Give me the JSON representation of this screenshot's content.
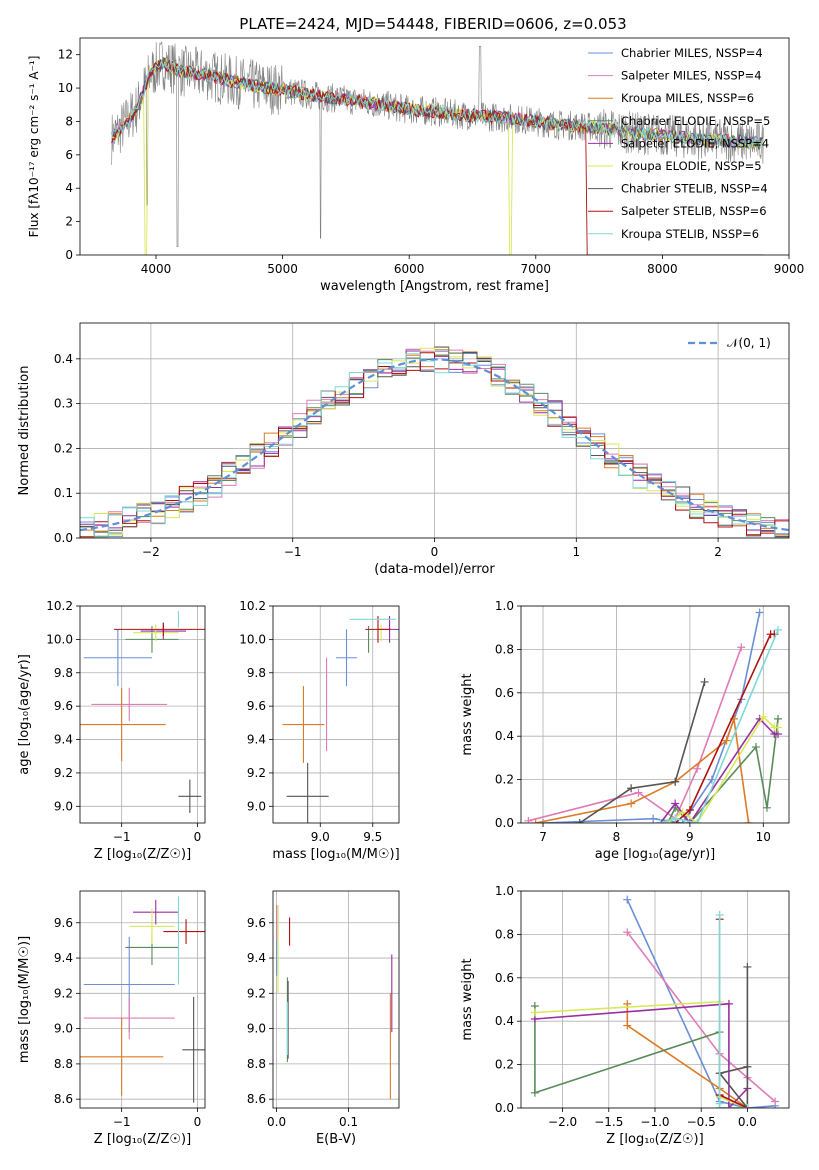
{
  "title": "PLATE=2424, MJD=54448, FIBERID=0606, z=0.053",
  "colors": {
    "c0": "#6a8fd8",
    "c1": "#e07bb5",
    "c2": "#dd7a25",
    "c3": "#5a8a5a",
    "c4": "#9a2fa0",
    "c5": "#d8e85a",
    "c6": "#555555",
    "c7": "#b01010",
    "c8": "#7fd8d8",
    "data": "#808080",
    "normal": "#5f8fd8"
  },
  "chart_data": [
    {
      "id": "spectrum",
      "type": "line",
      "xlabel": "wavelength [Angstrom, rest frame]",
      "ylabel": "Flux [fλ10⁻¹⁷ erg cm⁻² s⁻¹ A⁻¹]",
      "xlim": [
        3400,
        9000
      ],
      "ylim": [
        0,
        13
      ],
      "xticks": [
        4000,
        5000,
        6000,
        7000,
        8000,
        9000
      ],
      "yticks": [
        0,
        2,
        4,
        6,
        8,
        10,
        12
      ],
      "grid": false,
      "legend_position": "top-right",
      "legend": [
        "Chabrier MILES, NSSP=4",
        "Salpeter MILES, NSSP=4",
        "Kroupa MILES, NSSP=6",
        "Chabrier ELODIE, NSSP=5",
        "Salpeter ELODIE, NSSP=4",
        "Kroupa ELODIE, NSSP=5",
        "Chabrier STELIB, NSSP=4",
        "Salpeter STELIB, NSSP=6",
        "Kroupa STELIB, NSSP=6"
      ],
      "continuum": [
        [
          3650,
          7.0
        ],
        [
          3750,
          7.8
        ],
        [
          3850,
          8.8
        ],
        [
          3950,
          10.8
        ],
        [
          4050,
          11.5
        ],
        [
          4200,
          11.0
        ],
        [
          4400,
          10.8
        ],
        [
          4600,
          10.4
        ],
        [
          4800,
          10.1
        ],
        [
          5000,
          9.9
        ],
        [
          5200,
          9.6
        ],
        [
          5400,
          9.4
        ],
        [
          5600,
          9.2
        ],
        [
          5800,
          9.0
        ],
        [
          6000,
          8.7
        ],
        [
          6200,
          8.6
        ],
        [
          6400,
          8.4
        ],
        [
          6600,
          8.3
        ],
        [
          6800,
          8.2
        ],
        [
          7000,
          8.0
        ],
        [
          7200,
          7.8
        ],
        [
          7400,
          7.7
        ],
        [
          7600,
          7.5
        ],
        [
          7800,
          7.3
        ],
        [
          8000,
          7.2
        ],
        [
          8200,
          7.0
        ],
        [
          8400,
          6.9
        ],
        [
          8600,
          6.8
        ],
        [
          8800,
          6.7
        ]
      ]
    },
    {
      "id": "residuals",
      "type": "histogram",
      "xlabel": "(data-model)/error",
      "ylabel": "Normed distribution",
      "xlim": [
        -2.5,
        2.5
      ],
      "ylim": [
        0,
        0.48
      ],
      "xticks": [
        -2,
        -1,
        0,
        1,
        2
      ],
      "yticks": [
        0.0,
        0.1,
        0.2,
        0.3,
        0.4
      ],
      "grid": true,
      "legend_position": "top-right",
      "legend": [
        "𝒩(0, 1)"
      ]
    },
    {
      "id": "age_vs_Z",
      "type": "errorbar",
      "xlabel": "Z [log₁₀(Z/Z☉)]",
      "ylabel": "age  [log₁₀(age/yr)]",
      "xlim": [
        -1.55,
        0.1
      ],
      "ylim": [
        8.9,
        10.2
      ],
      "xticks": [
        -1,
        0
      ],
      "yticks": [
        9.0,
        9.2,
        9.4,
        9.6,
        9.8,
        10.0,
        10.2
      ],
      "grid": true,
      "points": [
        {
          "c": "c0",
          "x": -1.05,
          "xe": 0.45,
          "y": 9.89,
          "ye": 0.17
        },
        {
          "c": "c1",
          "x": -0.9,
          "xe": 0.5,
          "y": 9.61,
          "ye": 0.1
        },
        {
          "c": "c2",
          "x": -1.0,
          "xe": 0.58,
          "y": 9.49,
          "ye": 0.22
        },
        {
          "c": "c3",
          "x": -0.6,
          "xe": 0.35,
          "y": 10.0,
          "ye": 0.08
        },
        {
          "c": "c4",
          "x": -0.45,
          "xe": 0.3,
          "y": 10.05,
          "ye": 0.05
        },
        {
          "c": "c5",
          "x": -0.55,
          "xe": 0.3,
          "y": 10.04,
          "ye": 0.05
        },
        {
          "c": "c6",
          "x": -0.1,
          "xe": 0.15,
          "y": 9.06,
          "ye": 0.1
        },
        {
          "c": "c7",
          "x": -0.45,
          "xe": 0.65,
          "y": 10.06,
          "ye": 0.04
        },
        {
          "c": "c8",
          "x": -0.25,
          "xe": 0.0,
          "y": 10.12,
          "ye": 0.05
        }
      ]
    },
    {
      "id": "age_vs_mass",
      "type": "errorbar",
      "xlabel": "mass [log₁₀(M/M☉)]",
      "ylabel": "",
      "xlim": [
        8.55,
        9.75
      ],
      "ylim": [
        8.9,
        10.2
      ],
      "xticks": [
        9.0,
        9.5
      ],
      "yticks": [
        9.0,
        9.2,
        9.4,
        9.6,
        9.8,
        10.0,
        10.2
      ],
      "grid": true,
      "points": [
        {
          "c": "c0",
          "x": 9.25,
          "xe": 0.1,
          "y": 9.89,
          "ye": 0.17
        },
        {
          "c": "c1",
          "x": 9.06,
          "xe": 0.0,
          "y": 9.61,
          "ye": 0.28
        },
        {
          "c": "c2",
          "x": 8.84,
          "xe": 0.2,
          "y": 9.49,
          "ye": 0.23
        },
        {
          "c": "c3",
          "x": 9.46,
          "xe": 0.0,
          "y": 10.0,
          "ye": 0.08
        },
        {
          "c": "c4",
          "x": 9.66,
          "xe": 0.1,
          "y": 10.06,
          "ye": 0.08
        },
        {
          "c": "c5",
          "x": 9.58,
          "xe": 0.0,
          "y": 10.04,
          "ye": 0.05
        },
        {
          "c": "c6",
          "x": 8.88,
          "xe": 0.2,
          "y": 9.06,
          "ye": 0.2
        },
        {
          "c": "c7",
          "x": 9.55,
          "xe": 0.12,
          "y": 10.06,
          "ye": 0.08
        },
        {
          "c": "c8",
          "x": 9.5,
          "xe": 0.22,
          "y": 10.12,
          "ye": 0.0
        }
      ]
    },
    {
      "id": "weight_vs_age",
      "type": "line",
      "xlabel": "age  [log₁₀(age/yr)]",
      "ylabel": "mass weight",
      "xlim": [
        6.7,
        10.35
      ],
      "ylim": [
        0,
        1
      ],
      "xticks": [
        7,
        8,
        9,
        10
      ],
      "yticks": [
        0.0,
        0.2,
        0.4,
        0.6,
        0.8,
        1.0
      ],
      "grid": true,
      "series": [
        {
          "c": "c0",
          "x": [
            7.0,
            8.5,
            8.9,
            9.3,
            9.7,
            9.95
          ],
          "y": [
            0.0,
            0.02,
            0.0,
            0.2,
            0.57,
            0.97
          ]
        },
        {
          "c": "c1",
          "x": [
            6.8,
            8.3,
            8.8,
            9.1,
            9.7
          ],
          "y": [
            0.01,
            0.14,
            0.02,
            0.25,
            0.81
          ]
        },
        {
          "c": "c2",
          "x": [
            6.9,
            8.2,
            8.8,
            9.5,
            9.6,
            9.8
          ],
          "y": [
            0.0,
            0.09,
            0.19,
            0.38,
            0.48,
            0.0
          ]
        },
        {
          "c": "c3",
          "x": [
            8.7,
            8.8,
            9.0,
            9.9,
            10.05,
            10.2
          ],
          "y": [
            0.0,
            0.07,
            0.0,
            0.35,
            0.07,
            0.48
          ]
        },
        {
          "c": "c4",
          "x": [
            8.6,
            8.8,
            9.0,
            9.95,
            10.15,
            10.2
          ],
          "y": [
            0.0,
            0.09,
            0.0,
            0.48,
            0.41,
            0.41
          ]
        },
        {
          "c": "c5",
          "x": [
            8.7,
            8.9,
            9.1,
            10.0,
            10.15,
            10.2
          ],
          "y": [
            0.0,
            0.05,
            0.0,
            0.49,
            0.44,
            0.44
          ]
        },
        {
          "c": "c6",
          "x": [
            7.5,
            8.2,
            8.8,
            9.2
          ],
          "y": [
            0.0,
            0.16,
            0.19,
            0.65
          ]
        },
        {
          "c": "c7",
          "x": [
            8.8,
            9.0,
            10.1,
            10.15
          ],
          "y": [
            0.0,
            0.06,
            0.87,
            0.87
          ]
        },
        {
          "c": "c8",
          "x": [
            8.6,
            8.8,
            9.1,
            10.2
          ],
          "y": [
            0.0,
            0.02,
            0.0,
            0.89
          ]
        }
      ]
    },
    {
      "id": "mass_vs_Z",
      "type": "errorbar",
      "xlabel": "Z [log₁₀(Z/Z☉)]",
      "ylabel": "mass [log₁₀(M/M☉)]",
      "xlim": [
        -1.55,
        0.1
      ],
      "ylim": [
        8.55,
        9.78
      ],
      "xticks": [
        -1,
        0
      ],
      "yticks": [
        8.6,
        8.8,
        9.0,
        9.2,
        9.4,
        9.6
      ],
      "grid": true,
      "points": [
        {
          "c": "c0",
          "x": -0.9,
          "xe": 0.6,
          "y": 9.25,
          "ye": 0.27
        },
        {
          "c": "c1",
          "x": -0.9,
          "xe": 0.6,
          "y": 9.06,
          "ye": 0.12
        },
        {
          "c": "c2",
          "x": -1.0,
          "xe": 0.55,
          "y": 8.84,
          "ye": 0.22
        },
        {
          "c": "c3",
          "x": -0.6,
          "xe": 0.35,
          "y": 9.46,
          "ye": 0.1
        },
        {
          "c": "c4",
          "x": -0.55,
          "xe": 0.3,
          "y": 9.66,
          "ye": 0.07
        },
        {
          "c": "c5",
          "x": -0.6,
          "xe": 0.3,
          "y": 9.58,
          "ye": 0.1
        },
        {
          "c": "c6",
          "x": -0.05,
          "xe": 0.15,
          "y": 8.88,
          "ye": 0.3
        },
        {
          "c": "c7",
          "x": -0.15,
          "xe": 0.3,
          "y": 9.55,
          "ye": 0.07
        },
        {
          "c": "c8",
          "x": -0.25,
          "xe": 0.0,
          "y": 9.5,
          "ye": 0.25
        }
      ]
    },
    {
      "id": "mass_vs_ebv",
      "type": "errorbar",
      "xlabel": "E(B-V)",
      "ylabel": "",
      "xlim": [
        -0.005,
        0.17
      ],
      "ylim": [
        8.55,
        9.78
      ],
      "xticks": [
        0.0,
        0.1
      ],
      "yticks": [
        8.6,
        8.8,
        9.0,
        9.2,
        9.4,
        9.6
      ],
      "grid": true,
      "points": [
        {
          "c": "c0",
          "x": 0.0,
          "xe": 0,
          "y": 9.5,
          "ye": 0.2
        },
        {
          "c": "c1",
          "x": 0.0,
          "xe": 0,
          "y": 9.6,
          "ye": 0.1
        },
        {
          "c": "c2",
          "x": 0.158,
          "xe": 0,
          "y": 8.9,
          "ye": 0.3
        },
        {
          "c": "c3",
          "x": 0.015,
          "xe": 0,
          "y": 9.05,
          "ye": 0.24
        },
        {
          "c": "c4",
          "x": 0.16,
          "xe": 0,
          "y": 9.2,
          "ye": 0.22
        },
        {
          "c": "c5",
          "x": 0.002,
          "xe": 0,
          "y": 9.45,
          "ye": 0.25
        },
        {
          "c": "c6",
          "x": 0.016,
          "xe": 0,
          "y": 9.05,
          "ye": 0.22
        },
        {
          "c": "c7",
          "x": 0.018,
          "xe": 0,
          "y": 9.55,
          "ye": 0.08
        },
        {
          "c": "c8",
          "x": 0.015,
          "xe": 0,
          "y": 9.0,
          "ye": 0.15
        }
      ]
    },
    {
      "id": "weight_vs_Z",
      "type": "line",
      "xlabel": "Z [log₁₀(Z/Z☉)]",
      "ylabel": "mass weight",
      "xlim": [
        -2.45,
        0.45
      ],
      "ylim": [
        0,
        1
      ],
      "xticks": [
        -2.0,
        -1.5,
        -1.0,
        -0.5,
        0.0
      ],
      "yticks": [
        0.0,
        0.2,
        0.4,
        0.6,
        0.8,
        1.0
      ],
      "grid": true,
      "series": [
        {
          "c": "c0",
          "x": [
            -1.3,
            -0.3,
            0.0,
            0.3
          ],
          "y": [
            0.96,
            0.03,
            0.0,
            0.01
          ]
        },
        {
          "c": "c1",
          "x": [
            -1.3,
            -0.3,
            0.0,
            0.3
          ],
          "y": [
            0.81,
            0.25,
            0.14,
            0.03
          ]
        },
        {
          "c": "c2",
          "x": [
            -1.3,
            -1.3,
            -0.3,
            0.0,
            0.0
          ],
          "y": [
            0.48,
            0.38,
            0.09,
            0.0,
            0.0
          ]
        },
        {
          "c": "c3",
          "x": [
            -2.3,
            -2.3,
            -0.3,
            -0.3,
            0.0
          ],
          "y": [
            0.47,
            0.07,
            0.35,
            0.0,
            0.0
          ]
        },
        {
          "c": "c4",
          "x": [
            -2.3,
            -0.2,
            -0.2,
            0.0
          ],
          "y": [
            0.41,
            0.48,
            0.0,
            0.09
          ]
        },
        {
          "c": "c5",
          "x": [
            -2.3,
            -0.3,
            -0.3,
            0.0
          ],
          "y": [
            0.44,
            0.49,
            0.05,
            0.0
          ]
        },
        {
          "c": "c6",
          "x": [
            0.0,
            0.0,
            -0.3,
            0.0
          ],
          "y": [
            0.65,
            0.0,
            0.16,
            0.19
          ]
        },
        {
          "c": "c7",
          "x": [
            -0.3,
            -0.3,
            0.0
          ],
          "y": [
            0.87,
            0.06,
            0.0
          ]
        },
        {
          "c": "c8",
          "x": [
            -0.3,
            -0.3,
            -0.3,
            0.0
          ],
          "y": [
            0.89,
            0.02,
            0.0,
            0.0
          ]
        }
      ]
    }
  ]
}
